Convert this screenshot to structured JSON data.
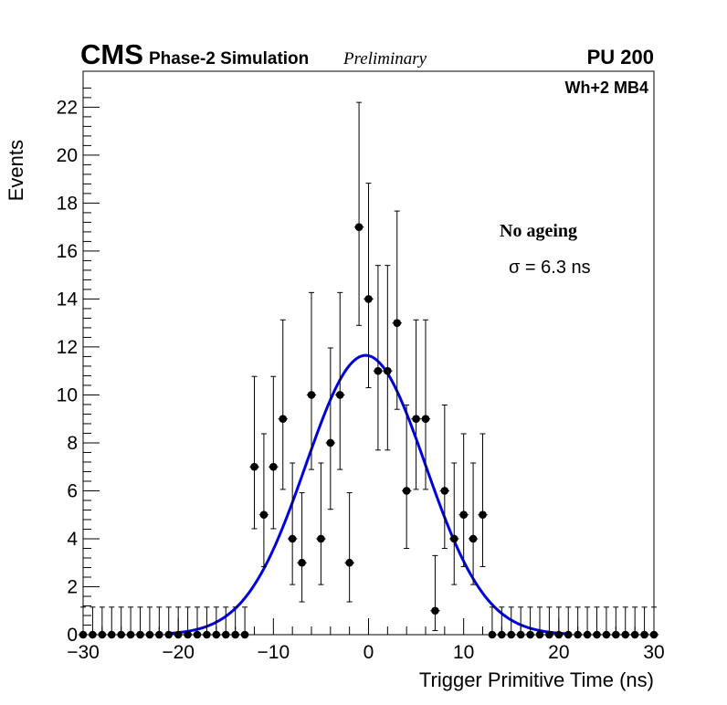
{
  "header": {
    "experiment": "CMS",
    "subtitle": "Phase-2 Simulation",
    "status": "Preliminary",
    "pileup": "PU 200"
  },
  "chart_data": {
    "type": "scatter",
    "title": "",
    "xlabel": "Trigger Primitive Time (ns)",
    "ylabel": "Events",
    "xlim": [
      -30,
      30
    ],
    "ylim": [
      0,
      23.5
    ],
    "x_ticks": [
      -30,
      -20,
      -10,
      0,
      10,
      20,
      30
    ],
    "y_ticks": [
      0,
      2,
      4,
      6,
      8,
      10,
      12,
      14,
      16,
      18,
      20,
      22
    ],
    "region_label": "Wh+2 MB4",
    "annotation_title": "No ageing",
    "annotation_sigma": "σ = 6.3 ns",
    "series": [
      {
        "name": "data",
        "style": "markers-with-errorbars",
        "color": "#000000",
        "x": [
          -30,
          -29,
          -28,
          -27,
          -26,
          -25,
          -24,
          -23,
          -22,
          -21,
          -20,
          -19,
          -18,
          -17,
          -16,
          -15,
          -14,
          -13,
          -12,
          -11,
          -10,
          -9,
          -8,
          -7,
          -6,
          -5,
          -4,
          -3,
          -2,
          -1,
          0,
          1,
          2,
          3,
          4,
          5,
          6,
          7,
          8,
          9,
          10,
          11,
          12,
          13,
          14,
          15,
          16,
          17,
          18,
          19,
          20,
          21,
          22,
          23,
          24,
          25,
          26,
          27,
          28,
          29,
          30
        ],
        "y": [
          0,
          0,
          0,
          0,
          0,
          0,
          0,
          0,
          0,
          0,
          0,
          0,
          0,
          0,
          0,
          0,
          0,
          0,
          7,
          5,
          7,
          9,
          4,
          3,
          10,
          4,
          8,
          10,
          3,
          17,
          14,
          11,
          11,
          13,
          6,
          9,
          9,
          1,
          6,
          4,
          5,
          4,
          5,
          0,
          0,
          0,
          0,
          0,
          0,
          0,
          0,
          0,
          0,
          0,
          0,
          0,
          0,
          0,
          0,
          0,
          0
        ],
        "yerr_up": [
          1.15,
          1.15,
          1.15,
          1.15,
          1.15,
          1.15,
          1.15,
          1.15,
          1.15,
          1.15,
          1.15,
          1.15,
          1.15,
          1.15,
          1.15,
          1.15,
          1.15,
          1.15,
          3.77,
          3.38,
          3.77,
          4.13,
          3.16,
          2.92,
          4.27,
          3.16,
          3.96,
          4.27,
          2.92,
          5.2,
          4.83,
          4.4,
          4.4,
          4.67,
          3.58,
          4.13,
          4.13,
          2.3,
          3.58,
          3.16,
          3.38,
          3.16,
          3.38,
          1.15,
          1.15,
          1.15,
          1.15,
          1.15,
          1.15,
          1.15,
          1.15,
          1.15,
          1.15,
          1.15,
          1.15,
          1.15,
          1.15,
          1.15,
          1.15,
          1.15,
          1.15
        ],
        "yerr_down": [
          0,
          0,
          0,
          0,
          0,
          0,
          0,
          0,
          0,
          0,
          0,
          0,
          0,
          0,
          0,
          0,
          0,
          0,
          2.58,
          2.16,
          2.58,
          2.94,
          1.91,
          1.63,
          3.11,
          1.91,
          2.77,
          3.11,
          1.63,
          4.1,
          3.7,
          3.3,
          3.3,
          3.6,
          2.4,
          2.94,
          2.94,
          0.83,
          2.4,
          1.91,
          2.16,
          1.91,
          2.16,
          0,
          0,
          0,
          0,
          0,
          0,
          0,
          0,
          0,
          0,
          0,
          0,
          0,
          0,
          0,
          0,
          0,
          0
        ]
      },
      {
        "name": "gaussian fit",
        "style": "line",
        "color": "#0000dd",
        "amplitude": 11.65,
        "mean": -0.3,
        "sigma": 6.3
      }
    ]
  }
}
